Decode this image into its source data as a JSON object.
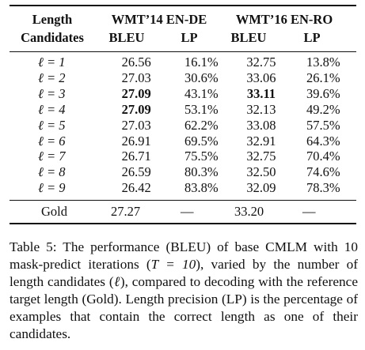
{
  "table": {
    "header": {
      "col_length_line1": "Length",
      "col_length_line2": "Candidates",
      "group1": "WMT’14 EN-DE",
      "group2": "WMT’16 EN-RO",
      "sub_bleu": "BLEU",
      "sub_lp": "LP"
    },
    "rows": [
      {
        "len": "ℓ = 1",
        "de_bleu": "26.56",
        "de_lp": "16.1%",
        "ro_bleu": "32.75",
        "ro_lp": "13.8%"
      },
      {
        "len": "ℓ = 2",
        "de_bleu": "27.03",
        "de_lp": "30.6%",
        "ro_bleu": "33.06",
        "ro_lp": "26.1%"
      },
      {
        "len": "ℓ = 3",
        "de_bleu": "27.09",
        "de_lp": "43.1%",
        "ro_bleu": "33.11",
        "ro_lp": "39.6%",
        "bold_de": true,
        "bold_ro": true
      },
      {
        "len": "ℓ = 4",
        "de_bleu": "27.09",
        "de_lp": "53.1%",
        "ro_bleu": "32.13",
        "ro_lp": "49.2%",
        "bold_de": true
      },
      {
        "len": "ℓ = 5",
        "de_bleu": "27.03",
        "de_lp": "62.2%",
        "ro_bleu": "33.08",
        "ro_lp": "57.5%"
      },
      {
        "len": "ℓ = 6",
        "de_bleu": "26.91",
        "de_lp": "69.5%",
        "ro_bleu": "32.91",
        "ro_lp": "64.3%"
      },
      {
        "len": "ℓ = 7",
        "de_bleu": "26.71",
        "de_lp": "75.5%",
        "ro_bleu": "32.75",
        "ro_lp": "70.4%"
      },
      {
        "len": "ℓ = 8",
        "de_bleu": "26.59",
        "de_lp": "80.3%",
        "ro_bleu": "32.50",
        "ro_lp": "74.6%"
      },
      {
        "len": "ℓ = 9",
        "de_bleu": "26.42",
        "de_lp": "83.8%",
        "ro_bleu": "32.09",
        "ro_lp": "78.3%"
      }
    ],
    "gold": {
      "label": "Gold",
      "de_bleu": "27.27",
      "de_lp": "—",
      "ro_bleu": "33.20",
      "ro_lp": "—"
    }
  },
  "caption": {
    "part1": "Table 5: The performance (BLEU) of base CMLM with 10 mask-predict iterations (",
    "T_eq": "T = 10",
    "part2": "), varied by the number of length candidates (",
    "ell": "ℓ",
    "part3": "), compared to decoding with the reference target length (Gold). Length precision (LP) is the percentage of examples that contain the correct length as one of their candidates."
  }
}
